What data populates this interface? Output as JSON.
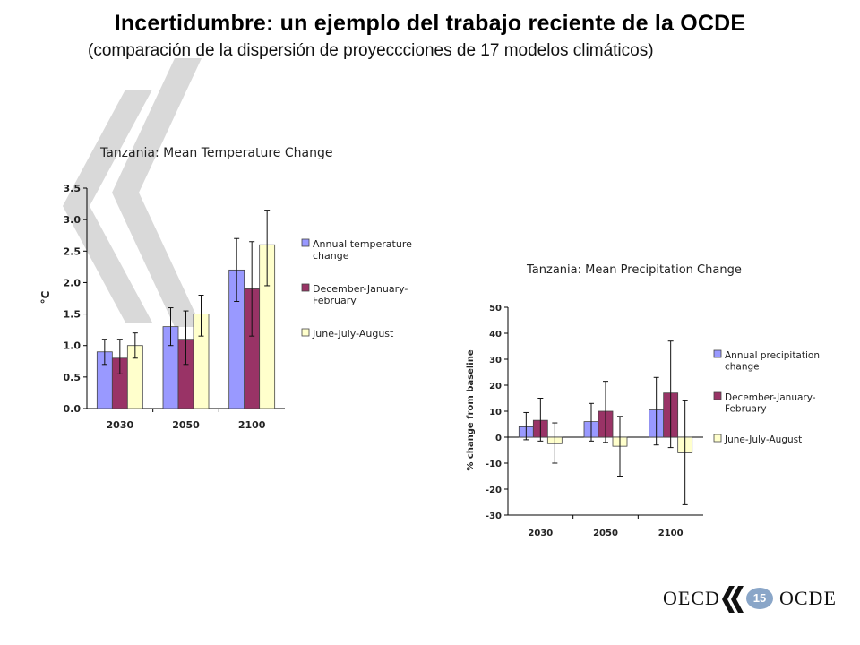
{
  "slide": {
    "title": "Incertidumbre: un ejemplo del trabajo reciente de la OCDE",
    "subtitle": "(comparación de la dispersión de proyeccciones de 17 modelos climáticos)",
    "page_number": "15",
    "footer_left": "OECD",
    "footer_right": "OCDE"
  },
  "colors": {
    "annual": "#9999ff",
    "djf": "#993366",
    "jja": "#ffffcc",
    "watermark": "#d9d9d9"
  },
  "chart_data": [
    {
      "type": "bar",
      "title": "Tanzania: Mean Temperature Change",
      "ylabel": "°C",
      "xlabel": "",
      "ylim": [
        0,
        3.5
      ],
      "yticks": [
        "0.0",
        "0.5",
        "1.0",
        "1.5",
        "2.0",
        "2.5",
        "3.0",
        "3.5"
      ],
      "categories": [
        "2030",
        "2050",
        "2100"
      ],
      "series": [
        {
          "name": "Annual temperature change",
          "values": [
            0.9,
            1.3,
            2.2
          ],
          "err_low": [
            0.7,
            1.0,
            1.7
          ],
          "err_high": [
            1.1,
            1.6,
            2.7
          ]
        },
        {
          "name": "December-January-February",
          "values": [
            0.8,
            1.1,
            1.9
          ],
          "err_low": [
            0.55,
            0.7,
            1.15
          ],
          "err_high": [
            1.1,
            1.55,
            2.65
          ]
        },
        {
          "name": "June-July-August",
          "values": [
            1.0,
            1.5,
            2.6
          ],
          "err_low": [
            0.8,
            1.15,
            1.95
          ],
          "err_high": [
            1.2,
            1.8,
            3.15
          ]
        }
      ],
      "legend_position": "right",
      "grid": false
    },
    {
      "type": "bar",
      "title": "Tanzania: Mean Precipitation Change",
      "ylabel": "% change from baseline",
      "xlabel": "",
      "ylim": [
        -30,
        50
      ],
      "yticks": [
        "50",
        "40",
        "30",
        "20",
        "10",
        "0",
        "-10",
        "-20",
        "-30"
      ],
      "categories": [
        "2030",
        "2050",
        "2100"
      ],
      "series": [
        {
          "name": "Annual precipitation change",
          "values": [
            4,
            6,
            10.5
          ],
          "err_low": [
            -1,
            -1.5,
            -3
          ],
          "err_high": [
            9.5,
            13,
            23
          ]
        },
        {
          "name": "December-January-February",
          "values": [
            6.5,
            10,
            17
          ],
          "err_low": [
            -1.5,
            -2,
            -4
          ],
          "err_high": [
            15,
            21.5,
            37
          ]
        },
        {
          "name": "June-July-August",
          "values": [
            -2.5,
            -3.5,
            -6
          ],
          "err_low": [
            -10,
            -15,
            -26
          ],
          "err_high": [
            5.5,
            8,
            14
          ]
        }
      ],
      "legend_position": "right",
      "grid": false
    }
  ]
}
